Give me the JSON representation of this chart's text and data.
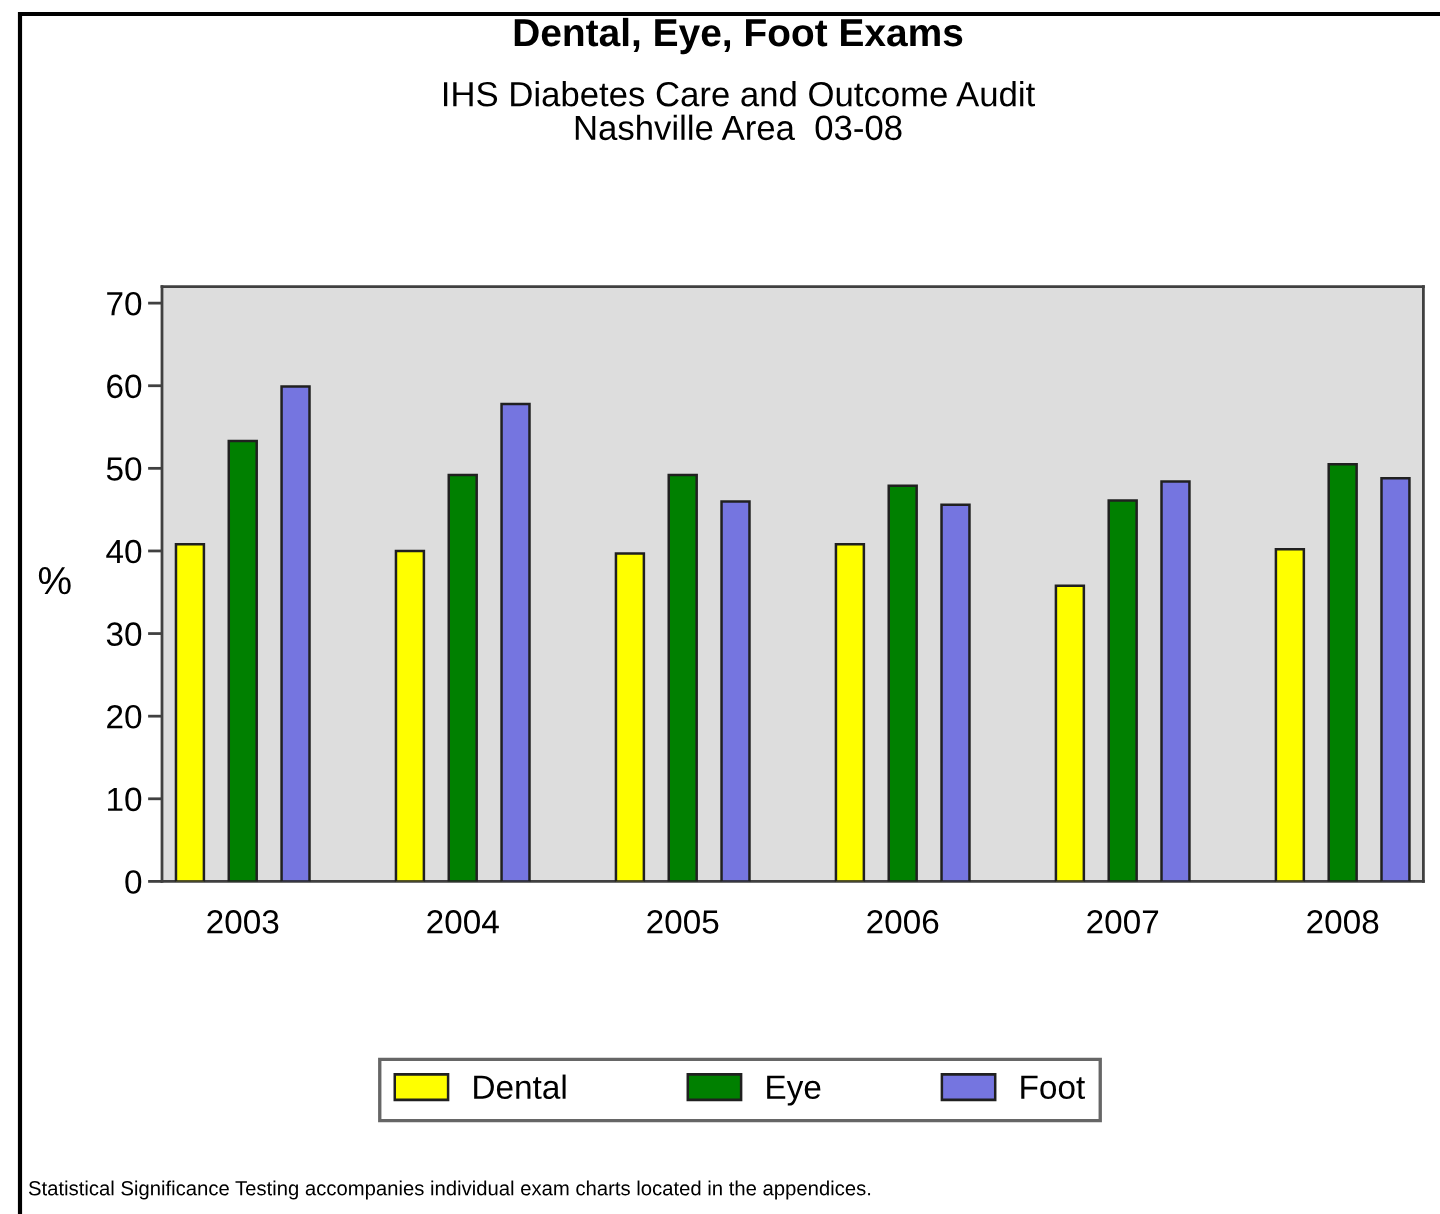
{
  "chart_data": {
    "type": "bar",
    "title": "Dental, Eye, Foot Exams",
    "subtitle": "IHS Diabetes Care and Outcome Audit\nNashville Area  03-08",
    "ylabel": "%",
    "categories": [
      "2003",
      "2004",
      "2005",
      "2006",
      "2007",
      "2008"
    ],
    "series": [
      {
        "name": "Dental",
        "color": "#ffff00",
        "values": [
          40.8,
          40.0,
          39.7,
          40.8,
          35.8,
          40.2
        ]
      },
      {
        "name": "Eye",
        "color": "#008000",
        "values": [
          53.3,
          49.2,
          49.2,
          47.9,
          46.1,
          50.5
        ]
      },
      {
        "name": "Foot",
        "color": "#7575e0",
        "values": [
          59.9,
          57.8,
          46.0,
          45.6,
          48.4,
          48.8
        ]
      }
    ],
    "ylim": [
      0,
      72
    ],
    "yticks": [
      0,
      10,
      20,
      30,
      40,
      50,
      60,
      70
    ],
    "grid": false,
    "legend": "bottom",
    "annotations": [
      "Statistical Significance Testing accompanies individual exam charts located in the appendices."
    ]
  }
}
